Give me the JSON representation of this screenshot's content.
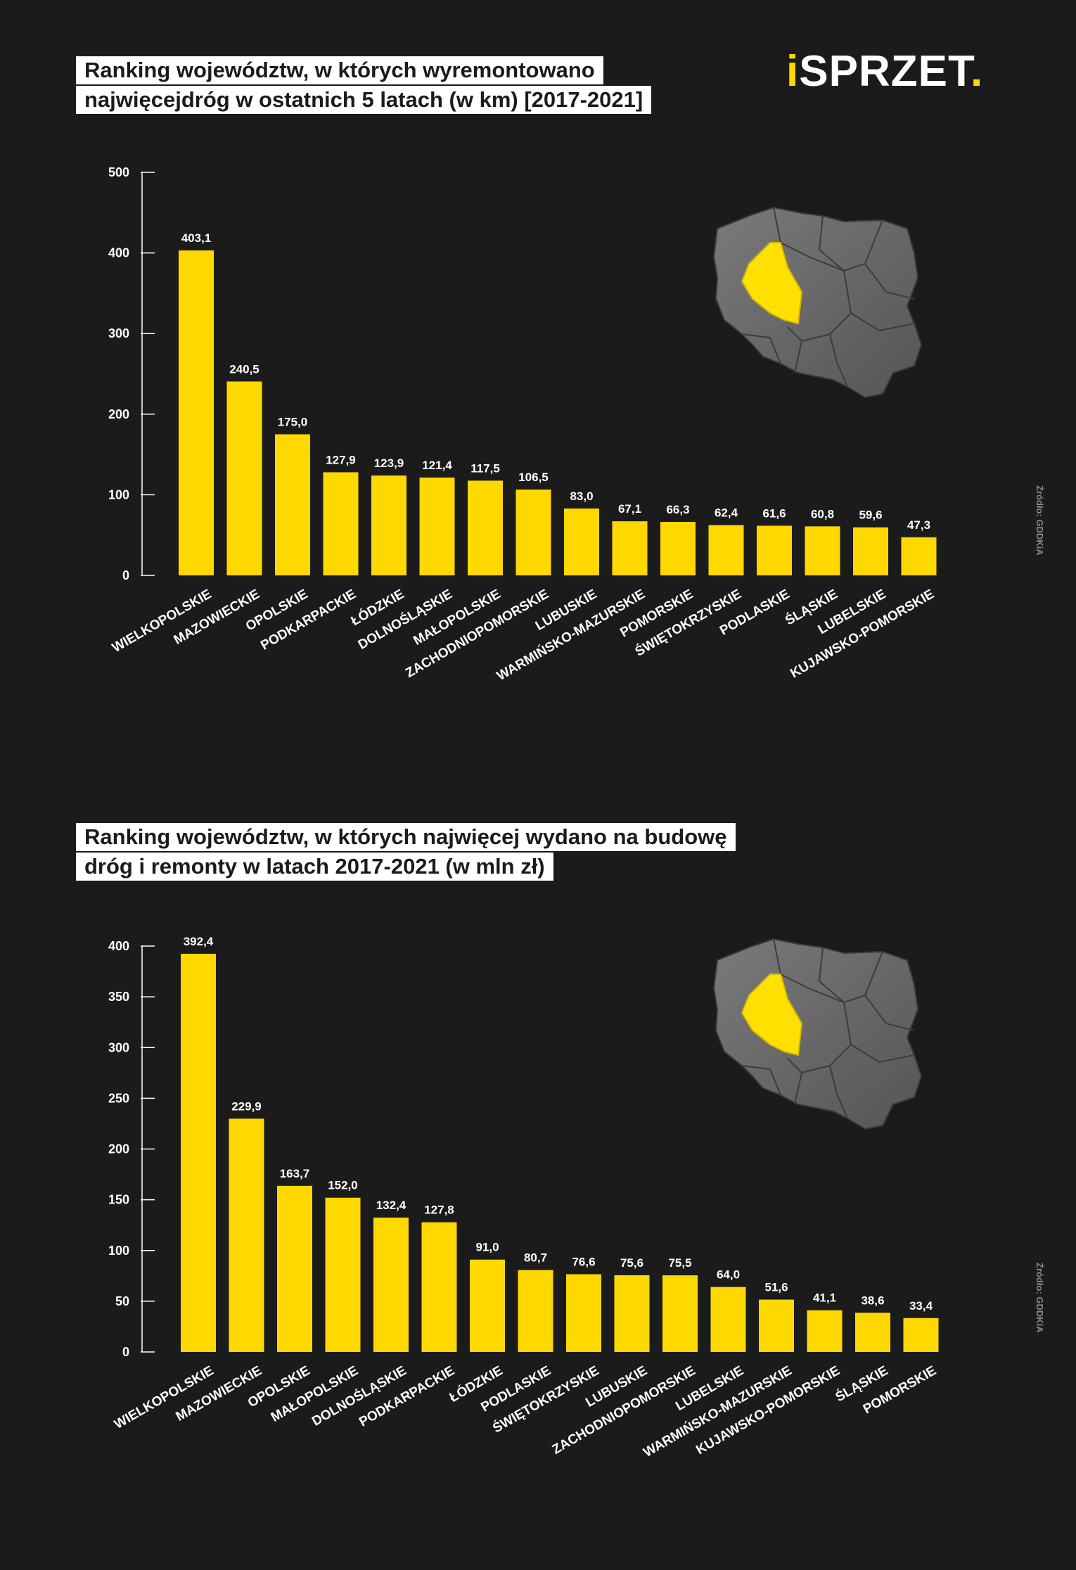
{
  "logo": {
    "dot_i": "i",
    "text": "SPRZET",
    "dot": "."
  },
  "colors": {
    "background": "#1b1b1b",
    "bar": "#ffd800",
    "text": "#ffffff",
    "highlight_region": "#ffe000",
    "map": "#6e6e6e"
  },
  "source_label": "Źródło: GDDKiA",
  "chart_data": [
    {
      "type": "bar",
      "title_lines": [
        "Ranking województw, w których wyremontowano",
        "najwięcejdróg w ostatnich 5 latach (w km) [2017-2021]"
      ],
      "xlabel": "",
      "ylabel": "",
      "ylim": [
        0,
        500
      ],
      "yticks": [
        0,
        100,
        200,
        300,
        400,
        500
      ],
      "grid": false,
      "categories": [
        "WIELKOPOLSKIE",
        "MAZOWIECKIE",
        "OPOLSKIE",
        "PODKARPACKIE",
        "ŁÓDZKIE",
        "DOLNOŚLĄSKIE",
        "MAŁOPOLSKIE",
        "ZACHODNIOPOMORSKIE",
        "LUBUSKIE",
        "WARMIŃSKO-MAZURSKIE",
        "POMORSKIE",
        "ŚWIĘTOKRZYSKIE",
        "PODLASKIE",
        "ŚLĄSKIE",
        "LUBELSKIE",
        "KUJAWSKO-POMORSKIE"
      ],
      "values": [
        403.1,
        240.5,
        175.0,
        127.9,
        123.9,
        121.4,
        117.5,
        106.5,
        83.0,
        67.1,
        66.3,
        62.4,
        61.6,
        60.8,
        59.6,
        47.3
      ],
      "value_labels": [
        "403,1",
        "240,5",
        "175,0",
        "127,9",
        "123,9",
        "121,4",
        "117,5",
        "106,5",
        "83,0",
        "67,1",
        "66,3",
        "62,4",
        "61,6",
        "60,8",
        "59,6",
        "47,3"
      ]
    },
    {
      "type": "bar",
      "title_lines": [
        "Ranking województw, w których najwięcej wydano na budowę",
        "dróg i remonty w latach 2017-2021 (w mln zł)"
      ],
      "xlabel": "",
      "ylabel": "",
      "ylim": [
        0,
        400
      ],
      "yticks": [
        0,
        50,
        100,
        150,
        200,
        250,
        300,
        350,
        400
      ],
      "grid": false,
      "categories": [
        "WIELKOPOLSKIE",
        "MAZOWIECKIE",
        "OPOLSKIE",
        "MAŁOPOLSKIE",
        "DOLNOŚLĄSKIE",
        "PODKARPACKIE",
        "ŁÓDZKIE",
        "PODLASKIE",
        "ŚWIĘTOKRZYSKIE",
        "LUBUSKIE",
        "ZACHODNIOPOMORSKIE",
        "LUBELSKIE",
        "WARMIŃSKO-MAZURSKIE",
        "KUJAWSKO-POMORSKIE",
        "ŚLĄSKIE",
        "POMORSKIE"
      ],
      "values": [
        392.4,
        229.9,
        163.7,
        152.0,
        132.4,
        127.8,
        91.0,
        80.7,
        76.6,
        75.6,
        75.5,
        64.0,
        51.6,
        41.1,
        38.6,
        33.4
      ],
      "value_labels": [
        "392,4",
        "229,9",
        "163,7",
        "152,0",
        "132,4",
        "127,8",
        "91,0",
        "80,7",
        "76,6",
        "75,6",
        "75,5",
        "64,0",
        "51,6",
        "41,1",
        "38,6",
        "33,4"
      ]
    }
  ]
}
